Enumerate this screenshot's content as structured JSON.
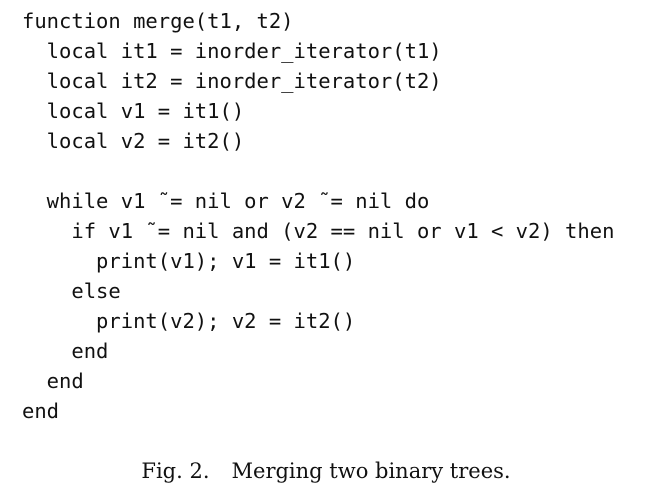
{
  "code": {
    "lines": [
      "function merge(t1, t2)",
      "  local it1 = inorder_iterator(t1)",
      "  local it2 = inorder_iterator(t2)",
      "  local v1 = it1()",
      "  local v2 = it2()",
      "",
      "  while v1 ˜= nil or v2 ˜= nil do",
      "    if v1 ˜= nil and (v2 == nil or v1 < v2) then",
      "      print(v1); v1 = it1()",
      "    else",
      "      print(v2); v2 = it2()",
      "    end",
      "  end",
      "end"
    ]
  },
  "caption": {
    "label": "Fig. 2.",
    "text": "Merging two binary trees."
  }
}
